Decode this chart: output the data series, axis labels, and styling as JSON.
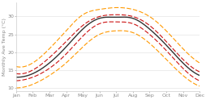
{
  "months": [
    "Jan",
    "Feb",
    "Mar",
    "Apr",
    "May",
    "Jun",
    "Jul",
    "Aug",
    "Sep",
    "Oct",
    "Nov",
    "Dec"
  ],
  "median": [
    13.0,
    14.0,
    17.0,
    21.5,
    26.5,
    29.5,
    29.8,
    29.5,
    26.5,
    22.0,
    17.0,
    13.5
  ],
  "p25": [
    12.0,
    13.0,
    15.5,
    19.5,
    24.5,
    28.0,
    28.5,
    28.0,
    25.0,
    20.5,
    15.5,
    12.0
  ],
  "p75": [
    14.0,
    15.0,
    18.5,
    23.0,
    27.5,
    30.0,
    30.5,
    30.0,
    27.5,
    23.0,
    18.0,
    14.5
  ],
  "min": [
    10.0,
    11.0,
    13.5,
    17.0,
    21.5,
    25.0,
    26.0,
    25.5,
    22.5,
    18.0,
    13.5,
    10.5
  ],
  "max": [
    16.0,
    17.0,
    21.0,
    26.0,
    30.5,
    32.0,
    32.5,
    32.0,
    30.0,
    26.0,
    21.0,
    17.0
  ],
  "color_median": "#333333",
  "color_iqr": "#cc1111",
  "color_minmax": "#ff9900",
  "ylabel": "Monthly Ave Temp (°C)",
  "ylim": [
    9,
    34
  ],
  "yticks": [
    10,
    15,
    20,
    25,
    30
  ],
  "background_color": "#ffffff",
  "grid_color": "#dddddd"
}
